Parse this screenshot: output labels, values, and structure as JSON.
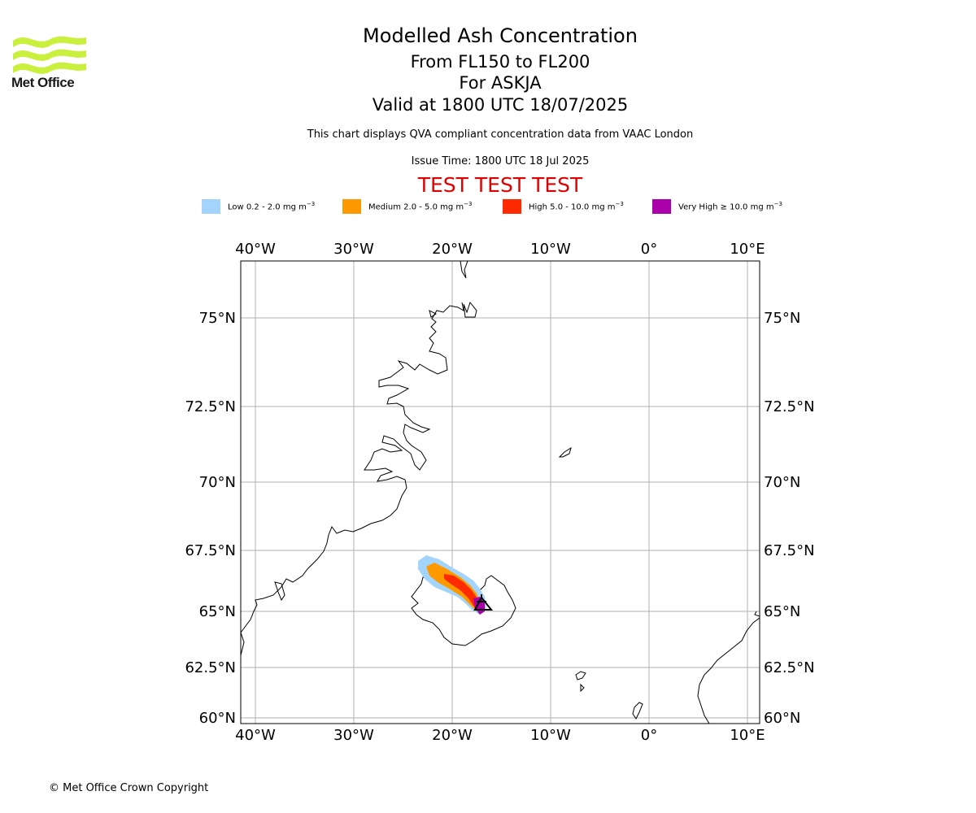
{
  "header": {
    "logo_text": "Met Office",
    "title": "Modelled Ash Concentration",
    "subtitle_levels": "From FL150 to FL200",
    "subtitle_volcano": "For ASKJA",
    "subtitle_valid": "Valid at 1800 UTC 18/07/2025",
    "description": "This chart displays QVA compliant concentration data from VAAC London",
    "issue_time": "Issue Time: 1800 UTC 18 Jul 2025",
    "test_banner": "TEST TEST TEST"
  },
  "legend": [
    {
      "label": "Low 0.2 - 2.0 mg m",
      "exp": "−3",
      "color": "#a3d4fb"
    },
    {
      "label": "Medium 2.0 - 5.0 mg m",
      "exp": "−3",
      "color": "#ff9900"
    },
    {
      "label": "High 5.0 - 10.0 mg m",
      "exp": "−3",
      "color": "#ff2a00"
    },
    {
      "label": "Very High  ≥  10.0 mg m",
      "exp": "−3",
      "color": "#aa00aa"
    }
  ],
  "map": {
    "lon_ticks": [
      {
        "value": -40,
        "label": "40°W"
      },
      {
        "value": -30,
        "label": "30°W"
      },
      {
        "value": -20,
        "label": "20°W"
      },
      {
        "value": -10,
        "label": "10°W"
      },
      {
        "value": 0,
        "label": "0°"
      },
      {
        "value": 10,
        "label": "10°E"
      }
    ],
    "lat_ticks": [
      {
        "value": 75,
        "label": "75°N"
      },
      {
        "value": 72.5,
        "label": "72.5°N"
      },
      {
        "value": 70,
        "label": "70°N"
      },
      {
        "value": 67.5,
        "label": "67.5°N"
      },
      {
        "value": 65,
        "label": "65°N"
      },
      {
        "value": 62.5,
        "label": "62.5°N"
      },
      {
        "value": 60,
        "label": "60°N"
      }
    ],
    "volcano_marker": "volcano-triangle-icon",
    "volcano_location": {
      "lon": -16.8,
      "lat": 65.03
    }
  },
  "footer": {
    "copyright": "© Met Office Crown Copyright"
  }
}
